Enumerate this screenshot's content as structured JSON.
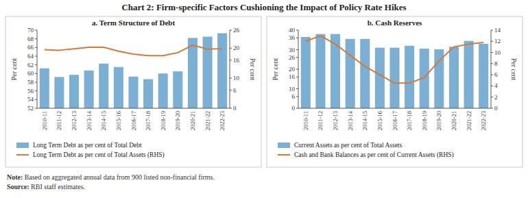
{
  "title": "Chart 2: Firm-specific Factors Cushioning the Impact of Policy Rate Hikes",
  "annotations": [
    "Note: Based on aggregated annual data from 900 listed non-financial firms.",
    "Source: RBI staff estimates."
  ],
  "chart_data": [
    {
      "type": "bar",
      "title": "a. Term Structure of Debt",
      "categories": [
        "2010-11",
        "2011-12",
        "2012-13",
        "2013-14",
        "2014-15",
        "2015-16",
        "2016-17",
        "2017-18",
        "2018-19",
        "2019-20",
        "2020-21",
        "2021-22",
        "2022-23"
      ],
      "series": [
        {
          "name": "Long Term Debt as per cent of Total Debt",
          "type": "bar",
          "color": "#7bafd4",
          "values": [
            61.2,
            59.2,
            59.7,
            60.7,
            62.3,
            61.5,
            59.3,
            58.7,
            60.0,
            60.5,
            68.2,
            68.5,
            69.3
          ]
        },
        {
          "name": "Long Term Debt as per cent of Total Assets (RHS)",
          "type": "line",
          "color": "#d4793a",
          "axis": "y2",
          "values": [
            19.5,
            19.3,
            19.8,
            20.3,
            20.3,
            19.0,
            18.0,
            17.5,
            17.5,
            18.5,
            21.0,
            19.7,
            19.8
          ]
        }
      ],
      "ylim": [
        52,
        70
      ],
      "yticks": [
        52,
        54,
        56,
        58,
        60,
        62,
        64,
        66,
        68,
        70
      ],
      "y2lim": [
        0,
        26
      ],
      "y2ticks": [
        0,
        6,
        10,
        16,
        20,
        26
      ],
      "ylabel": "Per cent",
      "y2label": "Per cent",
      "grid": false,
      "legend": "bottom"
    },
    {
      "type": "bar",
      "title": "b. Cash Reserves",
      "categories": [
        "2010-11",
        "2011-12",
        "2012-13",
        "2013-14",
        "2014-15",
        "2015-16",
        "2016-17",
        "2017-18",
        "2018-19",
        "2019-20",
        "2020-21",
        "2021-22",
        "2022-23"
      ],
      "series": [
        {
          "name": "Current Assets as per cent of Total Assets",
          "type": "bar",
          "color": "#7bafd4",
          "values": [
            36.5,
            38.0,
            38.0,
            35.5,
            35.5,
            31.0,
            31.0,
            32.0,
            30.5,
            30.2,
            31.5,
            34.5,
            33.0
          ]
        },
        {
          "name": "Cash and Bank Balances as per cent of Current Assets (RHS)",
          "type": "line",
          "color": "#d4793a",
          "axis": "y2",
          "values": [
            12.0,
            13.0,
            11.5,
            9.5,
            7.5,
            6.0,
            4.5,
            4.5,
            5.5,
            8.5,
            11.0,
            11.5,
            11.8
          ]
        }
      ],
      "ylim": [
        0,
        40
      ],
      "yticks": [
        0,
        6,
        10,
        16,
        20,
        26,
        30,
        36,
        40
      ],
      "y2lim": [
        0,
        14
      ],
      "y2ticks": [
        0,
        2,
        4,
        6,
        8,
        10,
        12,
        14
      ],
      "ylabel": "Per cent",
      "y2label": "Per cent",
      "grid": false,
      "legend": "bottom"
    }
  ]
}
